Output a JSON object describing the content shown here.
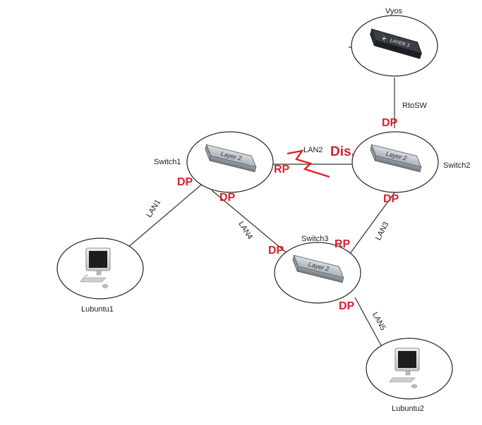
{
  "nodes": {
    "vyos": {
      "label": "Vyos",
      "device_text": "LAYER 3"
    },
    "switch1": {
      "label": "Switch1",
      "device_text": "Layer 2"
    },
    "switch2": {
      "label": "Switch2",
      "device_text": "Layer 2"
    },
    "switch3": {
      "label": "Switch3",
      "device_text": "Layer 2"
    },
    "lubuntu1": {
      "label": "Lubuntu1",
      "icon": "computer-icon"
    },
    "lubuntu2": {
      "label": "Lubuntu2",
      "icon": "computer-icon"
    }
  },
  "links": {
    "rtosw": "RtoSW",
    "lan1": "LAN1",
    "lan2": "LAN2",
    "lan3": "LAN3",
    "lan4": "LAN4",
    "lan5": "LAN5"
  },
  "ports": {
    "sw2_rtosw": "DP",
    "sw2_lan2": "Dis.",
    "sw2_lan3": "DP",
    "sw1_lan1": "DP",
    "sw1_lan4": "DP",
    "sw1_lan2": "RP",
    "sw3_lan4": "DP",
    "sw3_lan3": "RP",
    "sw3_lan5": "DP"
  },
  "colors": {
    "port_label": "#d8202a",
    "link": "#333333",
    "node_outline": "#222222",
    "broken_link_icon": "#e02020"
  }
}
